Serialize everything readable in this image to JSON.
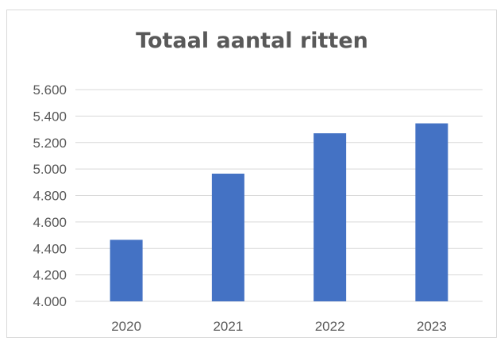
{
  "chart_data": {
    "type": "bar",
    "title": "Totaal aantal ritten",
    "categories": [
      "2020",
      "2021",
      "2022",
      "2023"
    ],
    "values": [
      4465,
      4965,
      5270,
      5345
    ],
    "ylim": [
      4000,
      5600
    ],
    "yticks": [
      4000,
      4200,
      4400,
      4600,
      4800,
      5000,
      5200,
      5400,
      5600
    ],
    "ytick_labels": [
      "4.000",
      "4.200",
      "4.400",
      "4.600",
      "4.800",
      "5.000",
      "5.200",
      "5.400",
      "5.600"
    ],
    "grid": true,
    "legend": "none",
    "bar_color": "#4472c4",
    "grid_color": "#d9d9d9"
  }
}
